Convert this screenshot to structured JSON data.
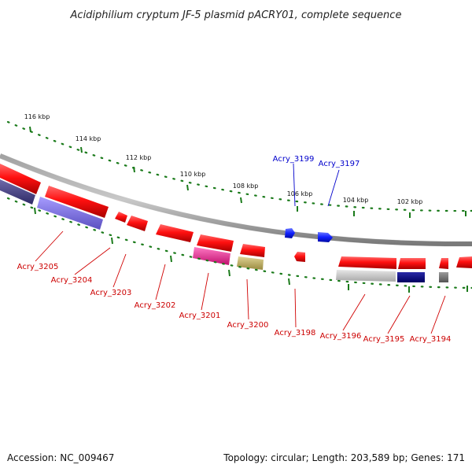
{
  "header": {
    "title": "Acidiphilium cryptum JF-5 plasmid pACRY01, complete sequence"
  },
  "footer": {
    "accession": "Accession: NC_009467",
    "summary": "Topology: circular; Length: 203,589 bp; Genes: 171"
  },
  "ruler": {
    "labels": [
      "116 kbp",
      "114 kbp",
      "112 kbp",
      "110 kbp",
      "108 kbp",
      "106 kbp",
      "104 kbp",
      "102 kbp"
    ]
  },
  "genes": [
    {
      "label": "Acry_3205",
      "color": "#cc0000"
    },
    {
      "label": "Acry_3204",
      "color": "#cc0000"
    },
    {
      "label": "Acry_3203",
      "color": "#cc0000"
    },
    {
      "label": "Acry_3202",
      "color": "#cc0000"
    },
    {
      "label": "Acry_3201",
      "color": "#cc0000"
    },
    {
      "label": "Acry_3200",
      "color": "#cc0000"
    },
    {
      "label": "Acry_3199",
      "color": "#0000cc"
    },
    {
      "label": "Acry_3198",
      "color": "#cc0000"
    },
    {
      "label": "Acry_3197",
      "color": "#0000cc"
    },
    {
      "label": "Acry_3196",
      "color": "#cc0000"
    },
    {
      "label": "Acry_3195",
      "color": "#cc0000"
    },
    {
      "label": "Acry_3194",
      "color": "#cc0000"
    }
  ],
  "colors": {
    "forward_gene": "#e8000a",
    "reverse_gene": "#0a14e6",
    "backbone": "#8a8a8a",
    "tick": "#1a7a1a",
    "cog_purple": "#7b6fd8",
    "cog_darkpurple": "#4e4a8c",
    "cog_magenta": "#e8359c",
    "cog_olive": "#c2b36a",
    "cog_gray": "#c8c8c8",
    "cog_navy": "#000080",
    "cog_darkgray": "#777777"
  }
}
